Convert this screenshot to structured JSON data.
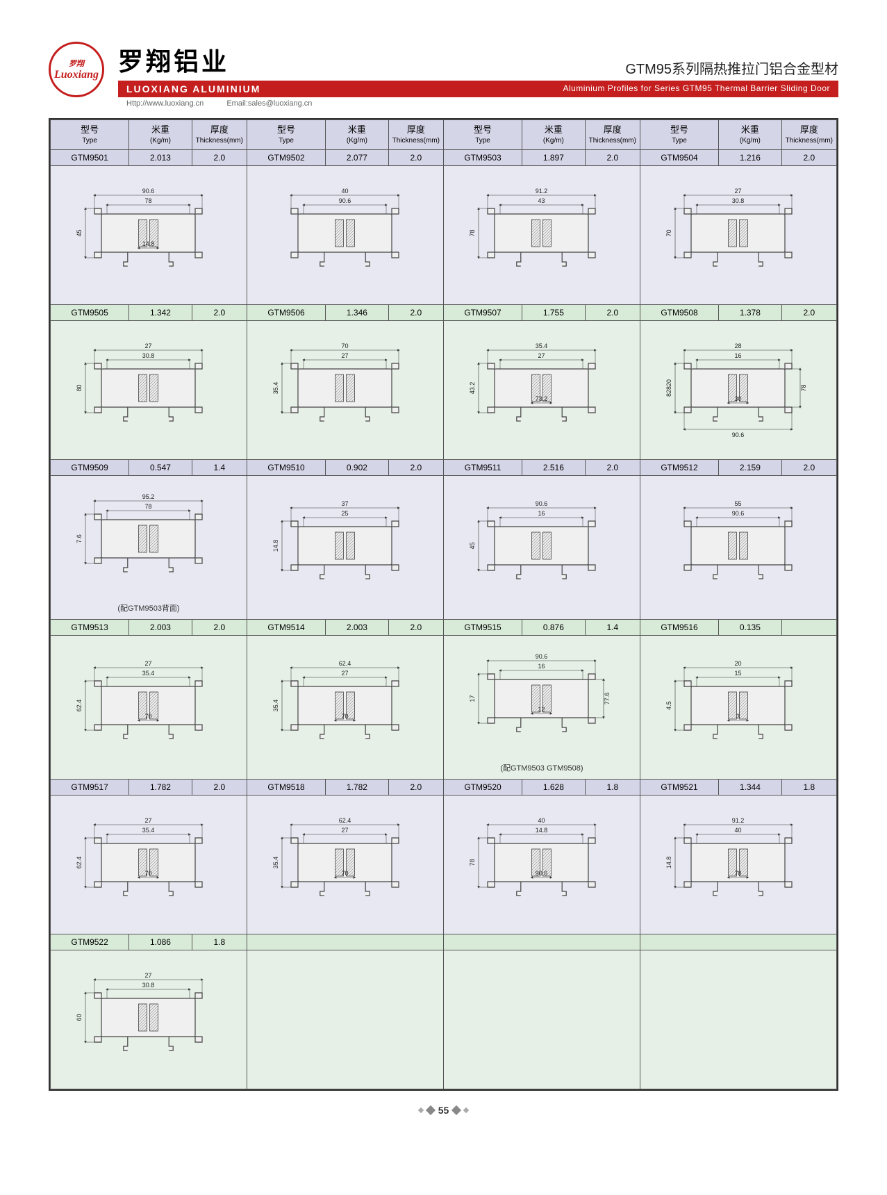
{
  "logo": {
    "top": "罗翔",
    "main": "Luoxiang"
  },
  "header": {
    "cn_title": "罗翔铝业",
    "series_cn": "GTM95系列隔热推拉门铝合金型材",
    "red_left": "LUOXIANG ALUMINIUM",
    "red_right": "Aluminium Profiles for Series GTM95 Thermal Barrier Sliding Door",
    "url": "Http://www.luoxiang.cn",
    "email": "Email:sales@luoxiang.cn"
  },
  "columns": {
    "type_cn": "型号",
    "type_en": "Type",
    "wt_cn": "米重",
    "wt_en": "(Kg/m)",
    "th_cn": "厚度",
    "th_en": "Thickness(mm)"
  },
  "rows": [
    {
      "bg": "purple",
      "cells": [
        {
          "type": "GTM9501",
          "wt": "2.013",
          "th": "2.0",
          "dims": [
            "90.6",
            "78",
            "45",
            "14.8"
          ]
        },
        {
          "type": "GTM9502",
          "wt": "2.077",
          "th": "2.0",
          "dims": [
            "40",
            "90.6"
          ]
        },
        {
          "type": "GTM9503",
          "wt": "1.897",
          "th": "2.0",
          "dims": [
            "91.2",
            "43",
            "78"
          ]
        },
        {
          "type": "GTM9504",
          "wt": "1.216",
          "th": "2.0",
          "dims": [
            "27",
            "30.8",
            "70"
          ]
        }
      ]
    },
    {
      "bg": "green",
      "cells": [
        {
          "type": "GTM9505",
          "wt": "1.342",
          "th": "2.0",
          "dims": [
            "27",
            "30.8",
            "80"
          ]
        },
        {
          "type": "GTM9506",
          "wt": "1.346",
          "th": "2.0",
          "dims": [
            "70",
            "27",
            "35.4"
          ]
        },
        {
          "type": "GTM9507",
          "wt": "1.755",
          "th": "2.0",
          "dims": [
            "35.4",
            "27",
            "43.2",
            "73.2"
          ]
        },
        {
          "type": "GTM9508",
          "wt": "1.378",
          "th": "2.0",
          "dims": [
            "28",
            "16",
            "82820",
            "30",
            "78",
            "90.6"
          ]
        }
      ]
    },
    {
      "bg": "purple",
      "cells": [
        {
          "type": "GTM9509",
          "wt": "0.547",
          "th": "1.4",
          "dims": [
            "95.2",
            "78",
            "7.6"
          ],
          "note": "(配GTM9503背面)"
        },
        {
          "type": "GTM9510",
          "wt": "0.902",
          "th": "2.0",
          "dims": [
            "37",
            "25",
            "14.8"
          ]
        },
        {
          "type": "GTM9511",
          "wt": "2.516",
          "th": "2.0",
          "dims": [
            "90.6",
            "16",
            "45"
          ]
        },
        {
          "type": "GTM9512",
          "wt": "2.159",
          "th": "2.0",
          "dims": [
            "55",
            "90.6"
          ]
        }
      ]
    },
    {
      "bg": "green",
      "cells": [
        {
          "type": "GTM9513",
          "wt": "2.003",
          "th": "2.0",
          "dims": [
            "27",
            "35.4",
            "62.4",
            "70"
          ]
        },
        {
          "type": "GTM9514",
          "wt": "2.003",
          "th": "2.0",
          "dims": [
            "62.4",
            "27",
            "35.4",
            "70"
          ]
        },
        {
          "type": "GTM9515",
          "wt": "0.876",
          "th": "1.4",
          "dims": [
            "90.6",
            "16",
            "17",
            "12",
            "77.6"
          ],
          "note": "(配GTM9503 GTM9508)"
        },
        {
          "type": "GTM9516",
          "wt": "0.135",
          "th": "",
          "dims": [
            "20",
            "15",
            "4.5",
            "3"
          ]
        }
      ]
    },
    {
      "bg": "purple",
      "cells": [
        {
          "type": "GTM9517",
          "wt": "1.782",
          "th": "2.0",
          "dims": [
            "27",
            "35.4",
            "62.4",
            "70"
          ]
        },
        {
          "type": "GTM9518",
          "wt": "1.782",
          "th": "2.0",
          "dims": [
            "62.4",
            "27",
            "35.4",
            "70"
          ]
        },
        {
          "type": "GTM9520",
          "wt": "1.628",
          "th": "1.8",
          "dims": [
            "40",
            "14.8",
            "78",
            "90.6"
          ]
        },
        {
          "type": "GTM9521",
          "wt": "1.344",
          "th": "1.8",
          "dims": [
            "91.2",
            "40",
            "14.8",
            "78"
          ]
        }
      ]
    },
    {
      "bg": "green",
      "cells": [
        {
          "type": "GTM9522",
          "wt": "1.086",
          "th": "1.8",
          "dims": [
            "27",
            "30.8",
            "60"
          ]
        },
        {
          "empty": true
        },
        {
          "empty": true
        },
        {
          "empty": true
        }
      ]
    }
  ],
  "page_number": "55",
  "colors": {
    "brand_red": "#c41e1e",
    "purple_hdr": "#d5d5e8",
    "green_hdr": "#d8ead8",
    "purple_bg": "#e8e8f2",
    "green_bg": "#e6f0e6"
  }
}
